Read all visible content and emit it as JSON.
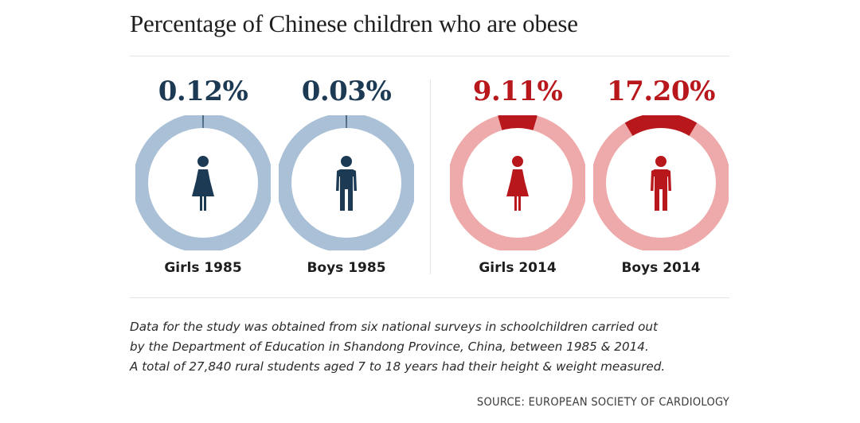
{
  "title": "Percentage of Chinese children who are obese",
  "chart_data": {
    "type": "pie",
    "title": "Percentage of Chinese children who are obese",
    "unit": "%",
    "items": [
      {
        "label": "Girls 1985",
        "value": 0.12,
        "display": "0.12%",
        "group": "1985"
      },
      {
        "label": "Boys 1985",
        "value": 0.03,
        "display": "0.03%",
        "group": "1985"
      },
      {
        "label": "Girls 2014",
        "value": 9.11,
        "display": "9.11%",
        "group": "2014"
      },
      {
        "label": "Boys 2014",
        "value": 17.2,
        "display": "17.20%",
        "group": "2014"
      }
    ],
    "colors": {
      "1985": {
        "ring": "#a9c0d6",
        "fill": "#1c3a54",
        "text": "#1c3a54"
      },
      "2014": {
        "ring": "#eeaaaa",
        "fill": "#b8181c",
        "text": "#b8181c"
      }
    }
  },
  "note_lines": [
    "Data for the study was obtained from six national surveys in schoolchildren carried out",
    "by the Department of Education in Shandong Province, China, between 1985 & 2014.",
    "A total of 27,840 rural students aged 7 to 18 years had their height & weight measured."
  ],
  "source": "SOURCE: EUROPEAN SOCIETY OF CARDIOLOGY",
  "icons": [
    "female-figure-icon",
    "male-figure-icon"
  ]
}
